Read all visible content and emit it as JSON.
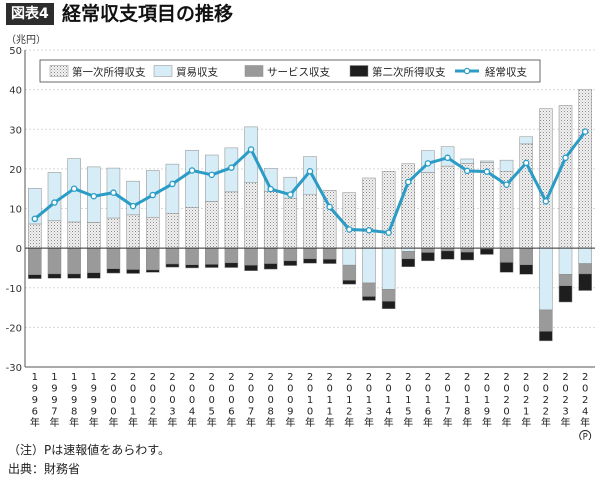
{
  "header": {
    "badge": "図表4",
    "title": "経常収支項目の推移"
  },
  "footnote": "（注）Pは速報値をあらわす。",
  "source": "出典：財務省",
  "chart_data": {
    "type": "bar",
    "unit_label": "（兆円）",
    "ylim": [
      -30,
      50
    ],
    "y_ticks": [
      50,
      40,
      30,
      20,
      10,
      0,
      -10,
      -20,
      -30
    ],
    "grid": true,
    "legend_position": "top",
    "categories": [
      "1996年",
      "1997年",
      "1998年",
      "1999年",
      "2000年",
      "2001年",
      "2002年",
      "2003年",
      "2004年",
      "2005年",
      "2006年",
      "2007年",
      "2008年",
      "2009年",
      "2010年",
      "2011年",
      "2012年",
      "2013年",
      "2014年",
      "2015年",
      "2016年",
      "2017年",
      "2018年",
      "2019年",
      "2020年",
      "2021年",
      "2022年",
      "2023年",
      "2024年"
    ],
    "category_note": {
      "index": 28,
      "label": "P"
    },
    "series": [
      {
        "name": "第一次所得収支",
        "kind": "bar",
        "color": "#ececec",
        "values": [
          6.1,
          6.9,
          6.6,
          6.5,
          7.6,
          8.4,
          7.8,
          8.8,
          10.3,
          11.8,
          14.2,
          16.5,
          14.3,
          12.6,
          13.6,
          14.6,
          14.0,
          17.7,
          19.4,
          21.3,
          19.1,
          20.7,
          21.4,
          21.6,
          19.4,
          26.3,
          35.2,
          36.0,
          40.1
        ]
      },
      {
        "name": "貿易収支",
        "kind": "bar",
        "color": "#d6ecf6",
        "values": [
          9.0,
          12.2,
          16.0,
          14.0,
          12.6,
          8.5,
          11.8,
          12.4,
          14.4,
          11.7,
          11.1,
          14.1,
          5.8,
          5.3,
          9.5,
          0.0,
          -4.3,
          -8.8,
          -10.4,
          -0.8,
          5.5,
          4.9,
          1.1,
          0.4,
          2.8,
          1.8,
          -15.6,
          -6.6,
          -3.9
        ]
      },
      {
        "name": "サービス収支",
        "kind": "bar",
        "color": "#9a9a9a",
        "values": [
          -6.7,
          -6.5,
          -6.5,
          -6.2,
          -5.2,
          -5.4,
          -5.5,
          -4.0,
          -4.2,
          -4.1,
          -3.7,
          -4.3,
          -3.9,
          -3.2,
          -2.7,
          -2.8,
          -3.8,
          -3.4,
          -3.0,
          -1.9,
          -1.1,
          -0.7,
          -1.0,
          -0.2,
          -3.6,
          -4.2,
          -5.4,
          -2.9,
          -2.6
        ]
      },
      {
        "name": "第二次所得収支",
        "kind": "bar",
        "color": "#1e1e1e",
        "values": [
          -1.0,
          -1.1,
          -1.1,
          -1.4,
          -1.1,
          -1.0,
          -0.6,
          -0.8,
          -0.8,
          -0.8,
          -1.2,
          -1.4,
          -1.4,
          -1.2,
          -1.1,
          -1.1,
          -1.0,
          -1.0,
          -1.9,
          -2.0,
          -2.1,
          -2.1,
          -2.0,
          -1.4,
          -2.5,
          -2.4,
          -2.4,
          -4.1,
          -4.2
        ]
      },
      {
        "name": "経常収支",
        "kind": "line",
        "color": "#2a9cc6",
        "values": [
          7.4,
          11.5,
          15.0,
          13.1,
          14.0,
          10.6,
          13.4,
          16.2,
          19.6,
          18.5,
          20.3,
          24.9,
          14.9,
          13.5,
          19.4,
          10.4,
          4.7,
          4.5,
          3.9,
          16.7,
          21.4,
          22.8,
          19.5,
          19.3,
          16.0,
          21.5,
          11.8,
          22.8,
          29.4
        ]
      }
    ]
  }
}
